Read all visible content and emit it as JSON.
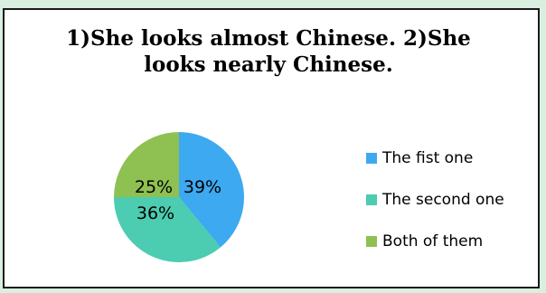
{
  "chart_data": {
    "type": "pie",
    "title": "1)She looks almost Chinese. 2)She looks nearly Chinese.",
    "categories": [
      "The fist one",
      "The second one",
      "Both of them"
    ],
    "values": [
      39,
      36,
      25
    ],
    "labels": [
      "39%",
      "36%",
      "25%"
    ],
    "colors": [
      "#3da9f0",
      "#4cccb0",
      "#8ec152"
    ],
    "legend_position": "right"
  }
}
